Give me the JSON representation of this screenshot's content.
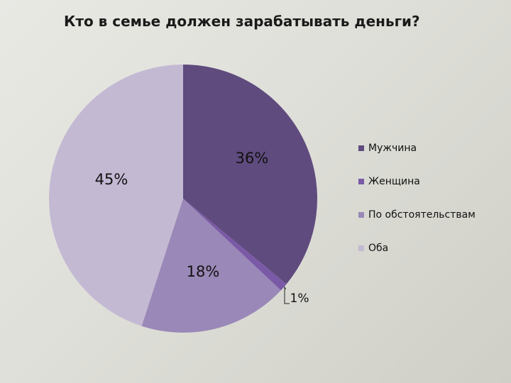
{
  "chart_data": {
    "type": "pie",
    "title": "Кто в семье должен зарабатывать деньги?",
    "categories": [
      "Мужчина",
      "Женщина",
      "По обстоятельствам",
      "Оба"
    ],
    "values": [
      36,
      1,
      18,
      45
    ],
    "data_labels": [
      "36%",
      "1%",
      "18%",
      "45%"
    ],
    "colors": [
      "#5f4b7e",
      "#7a5aa6",
      "#9a88b8",
      "#c4b9d3"
    ],
    "legend_position": "right",
    "start_angle": "top",
    "direction": "clockwise"
  }
}
